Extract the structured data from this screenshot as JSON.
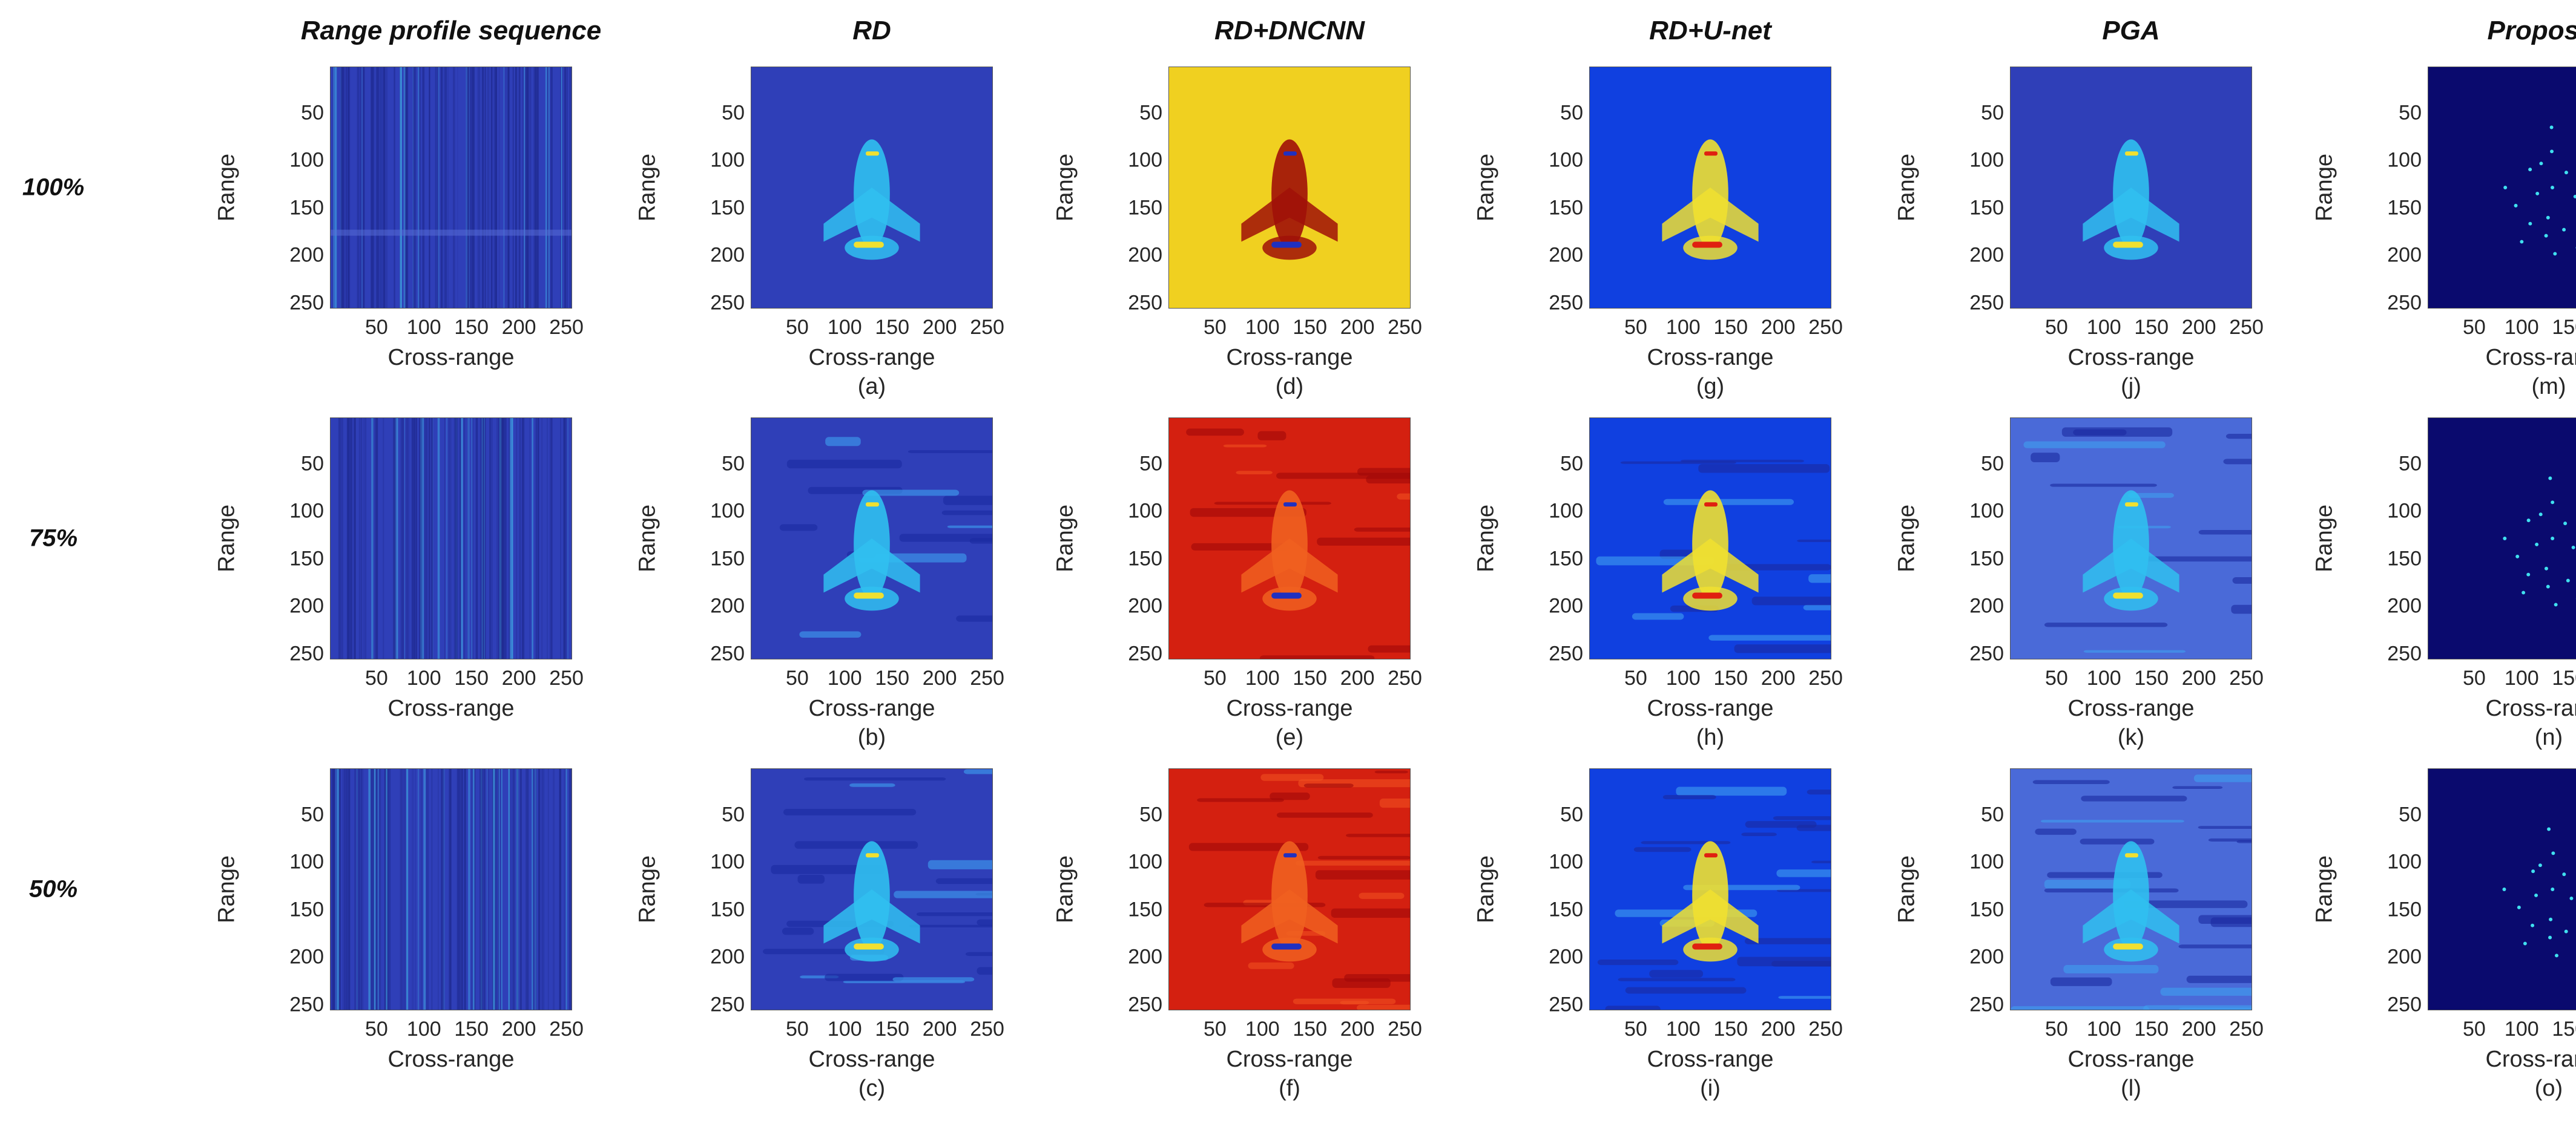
{
  "columns": [
    {
      "title": "Range profile sequence"
    },
    {
      "title": "RD"
    },
    {
      "title": "RD+DNCNN"
    },
    {
      "title": "RD+U-net"
    },
    {
      "title": "PGA"
    },
    {
      "title": "Proposed"
    }
  ],
  "rows": [
    {
      "label": "100%"
    },
    {
      "label": "75%"
    },
    {
      "label": "50%"
    }
  ],
  "axes": {
    "xlabel": "Cross-range",
    "ylabel": "Range",
    "xticks": [
      "50",
      "100",
      "150",
      "200",
      "250"
    ],
    "yticks": [
      "50",
      "100",
      "150",
      "200",
      "250"
    ],
    "xlim": [
      1,
      256
    ],
    "ylim": [
      1,
      256
    ]
  },
  "panels": [
    {
      "row": 0,
      "col": 0,
      "sublabel": ""
    },
    {
      "row": 0,
      "col": 1,
      "sublabel": "(a)"
    },
    {
      "row": 0,
      "col": 2,
      "sublabel": "(d)"
    },
    {
      "row": 0,
      "col": 3,
      "sublabel": "(g)"
    },
    {
      "row": 0,
      "col": 4,
      "sublabel": "(j)"
    },
    {
      "row": 0,
      "col": 5,
      "sublabel": "(m)"
    },
    {
      "row": 1,
      "col": 0,
      "sublabel": ""
    },
    {
      "row": 1,
      "col": 1,
      "sublabel": "(b)"
    },
    {
      "row": 1,
      "col": 2,
      "sublabel": "(e)"
    },
    {
      "row": 1,
      "col": 3,
      "sublabel": "(h)"
    },
    {
      "row": 1,
      "col": 4,
      "sublabel": "(k)"
    },
    {
      "row": 1,
      "col": 5,
      "sublabel": "(n)"
    },
    {
      "row": 2,
      "col": 0,
      "sublabel": ""
    },
    {
      "row": 2,
      "col": 1,
      "sublabel": "(c)"
    },
    {
      "row": 2,
      "col": 2,
      "sublabel": "(f)"
    },
    {
      "row": 2,
      "col": 3,
      "sublabel": "(i)"
    },
    {
      "row": 2,
      "col": 4,
      "sublabel": "(l)"
    },
    {
      "row": 2,
      "col": 5,
      "sublabel": "(o)"
    }
  ],
  "colors": {
    "jet_background": "#2f3fb8",
    "dncnn_background": "#f0d020",
    "dncnn_red": "#d42010",
    "unet_background": "#1040e0",
    "proposed_background": "#0a0a6e",
    "target_cyan": "#30c0f0",
    "hot_yellow": "#f0e030"
  }
}
